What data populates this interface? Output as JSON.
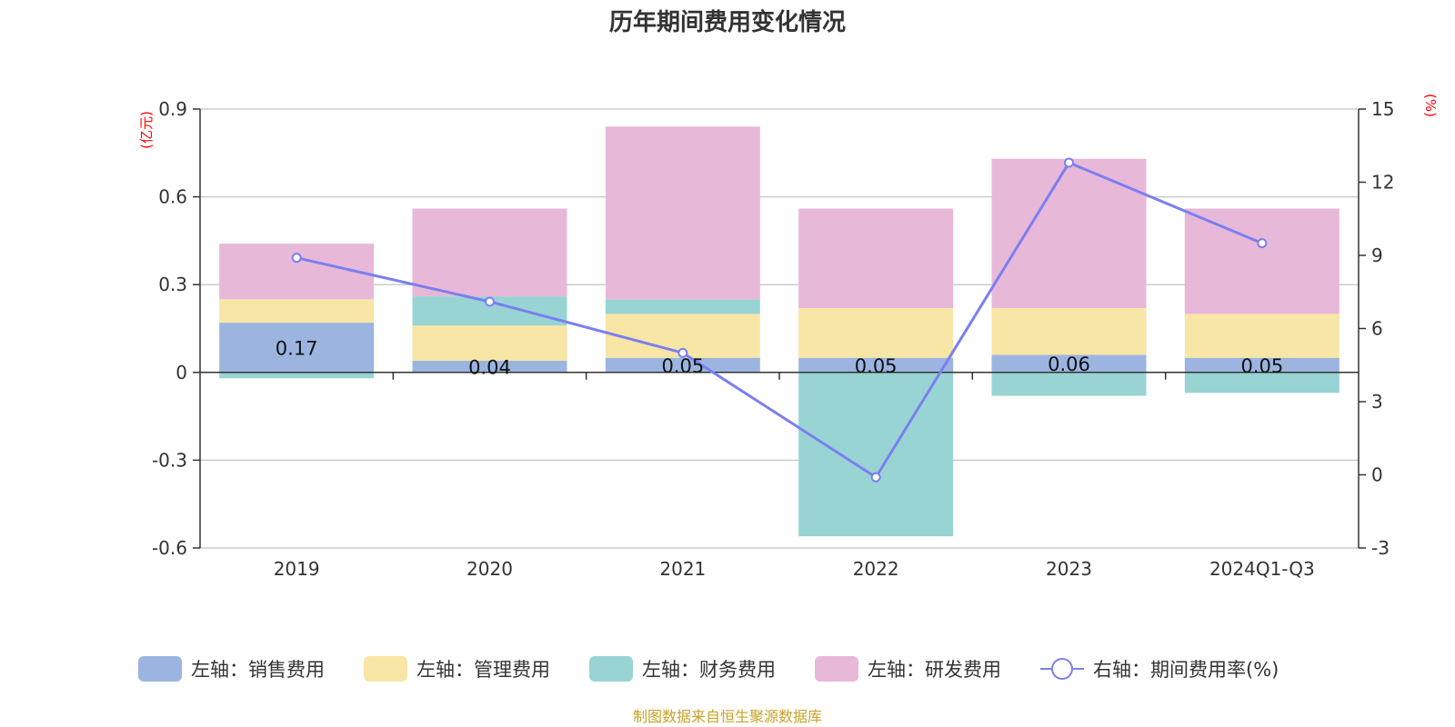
{
  "chart_data": {
    "type": "bar",
    "title": "历年期间费用变化情况",
    "categories": [
      "2019",
      "2020",
      "2021",
      "2022",
      "2023",
      "2024Q1-Q3"
    ],
    "left_axis": {
      "unit": "(亿元)",
      "ticks": [
        "0.9",
        "0.6",
        "0.3",
        "0",
        "-0.3",
        "-0.6"
      ],
      "ylim": [
        -0.6,
        0.9
      ]
    },
    "right_axis": {
      "unit": "(%)",
      "ticks": [
        "15",
        "12",
        "9",
        "6",
        "3",
        "0",
        "-3"
      ],
      "ylim": [
        -3,
        15
      ]
    },
    "series": [
      {
        "name": "左轴：销售费用",
        "color": "#9bb5e0",
        "values": [
          0.17,
          0.04,
          0.05,
          0.05,
          0.06,
          0.05
        ],
        "labels": [
          "0.17",
          "0.04",
          "0.05",
          "0.05",
          "0.06",
          "0.05"
        ]
      },
      {
        "name": "左轴：管理费用",
        "color": "#f8e6a6",
        "values": [
          0.08,
          0.12,
          0.15,
          0.17,
          0.16,
          0.15
        ]
      },
      {
        "name": "左轴：财务费用",
        "color": "#98d4d4",
        "values": [
          -0.02,
          0.1,
          0.05,
          -0.56,
          -0.08,
          -0.07
        ]
      },
      {
        "name": "左轴：研发费用",
        "color": "#e8b8d9",
        "values": [
          0.19,
          0.3,
          0.59,
          0.34,
          0.51,
          0.36
        ]
      }
    ],
    "line": {
      "name": "右轴：期间费用率(%)",
      "color": "#7b7ff0",
      "values": [
        8.9,
        7.1,
        5.0,
        -0.1,
        12.8,
        9.5
      ]
    }
  },
  "source": "制图数据来自恒生聚源数据库"
}
